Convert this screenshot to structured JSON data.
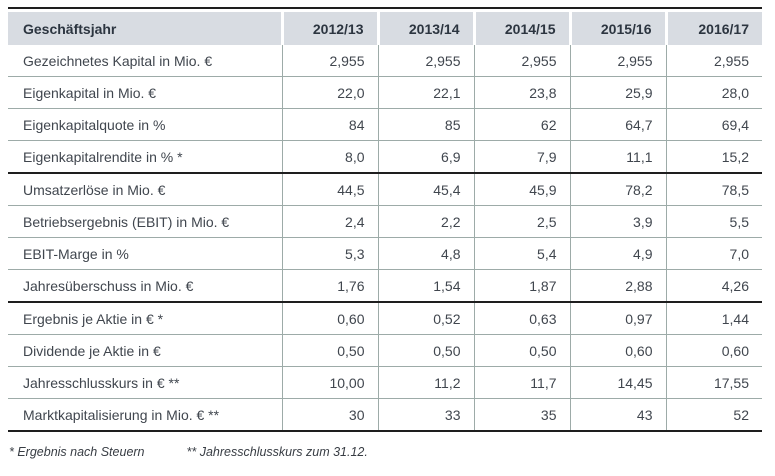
{
  "table": {
    "header": {
      "label": "Geschäftsjahr",
      "years": [
        "2012/13",
        "2013/14",
        "2014/15",
        "2015/16",
        "2016/17"
      ]
    },
    "rows": [
      {
        "label": "Gezeichnetes Kapital in Mio. €",
        "values": [
          "2,955",
          "2,955",
          "2,955",
          "2,955",
          "2,955"
        ],
        "section_start": false
      },
      {
        "label": "Eigenkapital in Mio. €",
        "values": [
          "22,0",
          "22,1",
          "23,8",
          "25,9",
          "28,0"
        ],
        "section_start": false
      },
      {
        "label": "Eigenkapitalquote in %",
        "values": [
          "84",
          "85",
          "62",
          "64,7",
          "69,4"
        ],
        "section_start": false
      },
      {
        "label": "Eigenkapitalrendite in % *",
        "values": [
          "8,0",
          "6,9",
          "7,9",
          "11,1",
          "15,2"
        ],
        "section_start": false
      },
      {
        "label": "Umsatzerlöse in Mio. €",
        "values": [
          "44,5",
          "45,4",
          "45,9",
          "78,2",
          "78,5"
        ],
        "section_start": true
      },
      {
        "label": "Betriebsergebnis (EBIT) in Mio. €",
        "values": [
          "2,4",
          "2,2",
          "2,5",
          "3,9",
          "5,5"
        ],
        "section_start": false
      },
      {
        "label": "EBIT-Marge in %",
        "values": [
          "5,3",
          "4,8",
          "5,4",
          "4,9",
          "7,0"
        ],
        "section_start": false
      },
      {
        "label": "Jahresüberschuss in Mio. €",
        "values": [
          "1,76",
          "1,54",
          "1,87",
          "2,88",
          "4,26"
        ],
        "section_start": false
      },
      {
        "label": "Ergebnis je Aktie in € *",
        "values": [
          "0,60",
          "0,52",
          "0,63",
          "0,97",
          "1,44"
        ],
        "section_start": true
      },
      {
        "label": "Dividende je Aktie in €",
        "values": [
          "0,50",
          "0,50",
          "0,50",
          "0,60",
          "0,60"
        ],
        "section_start": false
      },
      {
        "label": "Jahresschlusskurs in € **",
        "values": [
          "10,00",
          "11,2",
          "11,7",
          "14,45",
          "17,55"
        ],
        "section_start": false
      },
      {
        "label": "Marktkapitalisierung in Mio. € **",
        "values": [
          "30",
          "33",
          "35",
          "43",
          "52"
        ],
        "section_start": false
      }
    ]
  },
  "footnotes": [
    "* Ergebnis nach Steuern",
    "** Jahresschlusskurs zum 31.12."
  ],
  "colors": {
    "header_bg": "#d8dce2",
    "header_text": "#2c3540",
    "body_text": "#40464e",
    "grid_line": "#9daba8",
    "section_rule": "#1e1e1e"
  }
}
